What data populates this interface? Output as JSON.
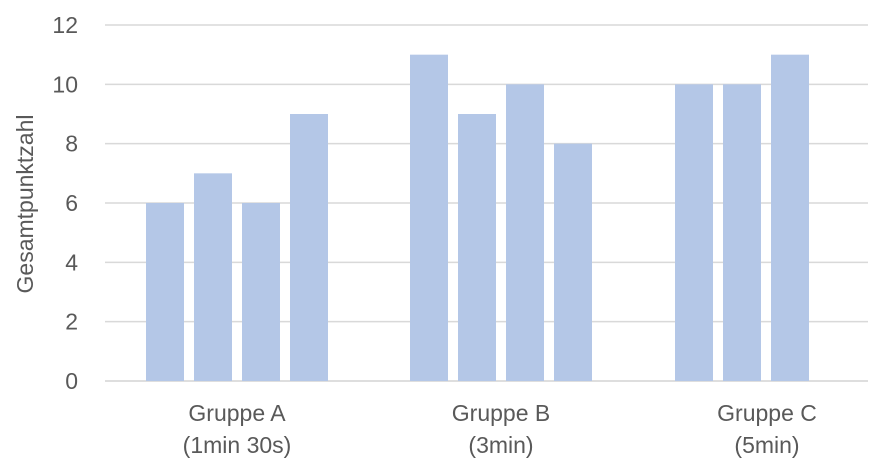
{
  "chart_data": {
    "type": "bar",
    "ylabel": "Gesamtpunktzahl",
    "xlabel": "",
    "title": "",
    "ylim": [
      0,
      12
    ],
    "yticks": [
      0,
      2,
      4,
      6,
      8,
      10,
      12
    ],
    "grid": true,
    "bar_color": "#b4c7e7",
    "grid_color": "#d9d9d9",
    "groups": [
      {
        "label_line1": "Gruppe A",
        "label_line2": "(1min 30s)",
        "values": [
          6,
          7,
          6,
          9
        ]
      },
      {
        "label_line1": "Gruppe B",
        "label_line2": "(3min)",
        "values": [
          11,
          9,
          10,
          8
        ]
      },
      {
        "label_line1": "Gruppe C",
        "label_line2": "(5min)",
        "values": [
          10,
          10,
          11
        ]
      }
    ]
  }
}
